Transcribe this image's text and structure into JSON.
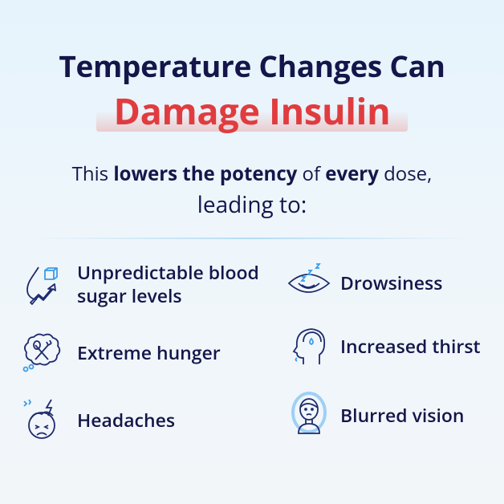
{
  "headline": {
    "line1": "Temperature Changes Can",
    "line2": "Damage Insulin"
  },
  "subtitle": {
    "t1": "This ",
    "b1": "lowers the potency",
    "t2": " of ",
    "b2": "every",
    "t3": " dose,",
    "line2": "leading to:"
  },
  "symptoms": [
    {
      "label_line1": "Unpredictable blood",
      "label_line2": "sugar levels",
      "icon": "blood-drop-sugar-cube-arrow-icon"
    },
    {
      "label_line1": "Drowsiness",
      "icon": "sleepy-eye-icon"
    },
    {
      "label_line1": "Extreme hunger",
      "icon": "fork-spoon-thought-icon"
    },
    {
      "label_line1": "Increased thirst",
      "icon": "head-droplet-icon"
    },
    {
      "label_line1": "Headaches",
      "icon": "headache-face-icon"
    },
    {
      "label_line1": "Blurred vision",
      "icon": "blurred-person-icon"
    }
  ],
  "colors": {
    "navy": "#14164a",
    "accent_red": "#e03c3f",
    "icon_blue": "#3a9be8",
    "icon_navy": "#1f2b6e"
  }
}
